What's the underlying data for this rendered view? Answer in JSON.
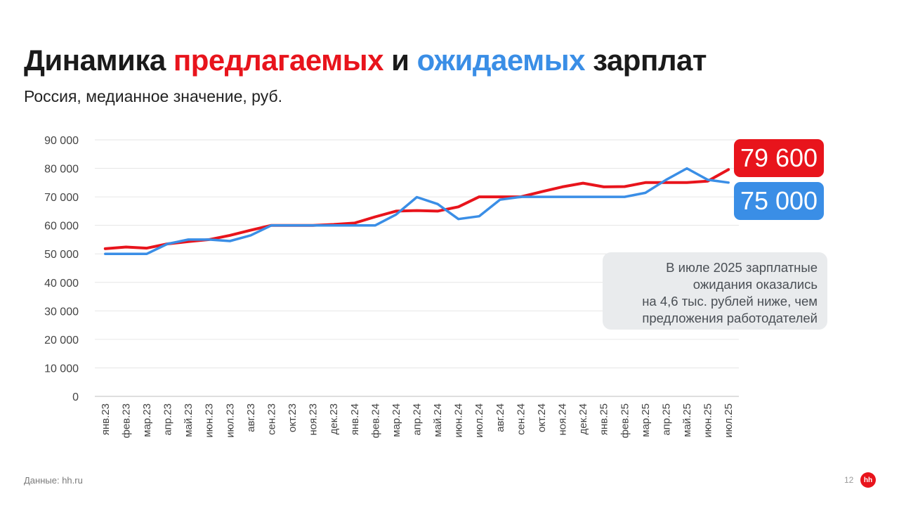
{
  "title": {
    "part1": "Динамика ",
    "highlight_red": "предлагаемых",
    "part2": " и ",
    "highlight_blue": "ожидаемых",
    "part3": " зарплат"
  },
  "subtitle": "Россия, медианное значение, руб.",
  "badges": {
    "offered": "79 600",
    "expected": "75 000"
  },
  "note": {
    "lines": [
      "В июле 2025 зарплатные",
      "ожидания оказались",
      "на 4,6 тыс. рублей ниже, чем",
      "предложения работодателей"
    ]
  },
  "footer": {
    "source": "Данные: hh.ru",
    "page_number": "12",
    "logo_text": "hh"
  },
  "colors": {
    "offered": "#e8141c",
    "expected": "#3a8ee6",
    "grid": "#e6e6e6",
    "axis_text": "#444444"
  },
  "chart_data": {
    "type": "line",
    "title": "Динамика предлагаемых и ожидаемых зарплат",
    "subtitle": "Россия, медианное значение, руб.",
    "xlabel": "",
    "ylabel": "",
    "ylim": [
      0,
      90000
    ],
    "yticks": [
      0,
      10000,
      20000,
      30000,
      40000,
      50000,
      60000,
      70000,
      80000,
      90000
    ],
    "ytick_labels": [
      "0",
      "10 000",
      "20 000",
      "30 000",
      "40 000",
      "50 000",
      "60 000",
      "70 000",
      "80 000",
      "90 000"
    ],
    "grid": true,
    "categories": [
      "янв.23",
      "фев.23",
      "мар.23",
      "апр.23",
      "май.23",
      "июн.23",
      "июл.23",
      "авг.23",
      "сен.23",
      "окт.23",
      "ноя.23",
      "дек.23",
      "янв.24",
      "фев.24",
      "мар.24",
      "апр.24",
      "май.24",
      "июн.24",
      "июл.24",
      "авг.24",
      "сен.24",
      "окт.24",
      "ноя.24",
      "дек.24",
      "янв.25",
      "фев.25",
      "мар.25",
      "апр.25",
      "май.25",
      "июн.25",
      "июл.25"
    ],
    "series": [
      {
        "key": "offered",
        "values": [
          51800,
          52400,
          52000,
          53500,
          54300,
          55000,
          56500,
          58300,
          60000,
          60000,
          60000,
          60300,
          60800,
          63000,
          65000,
          65200,
          65000,
          66500,
          70000,
          70000,
          70000,
          71800,
          73500,
          74800,
          73500,
          73600,
          75000,
          75000,
          75000,
          75500,
          79600
        ]
      },
      {
        "key": "expected",
        "values": [
          50000,
          50000,
          50000,
          53500,
          55000,
          55000,
          54500,
          56500,
          60000,
          60000,
          60000,
          60000,
          60000,
          60000,
          63800,
          69900,
          67500,
          62200,
          63200,
          69000,
          70000,
          70000,
          70000,
          70000,
          70000,
          70000,
          71400,
          76000,
          80000,
          76000,
          75000
        ]
      }
    ]
  }
}
